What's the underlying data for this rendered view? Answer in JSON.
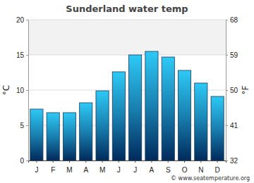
{
  "chart_data": {
    "type": "bar",
    "title": "Sunderland water temp",
    "categories": [
      "J",
      "F",
      "M",
      "A",
      "M",
      "J",
      "J",
      "A",
      "S",
      "O",
      "N",
      "D"
    ],
    "values": [
      7.3,
      6.8,
      6.8,
      8.2,
      9.9,
      12.6,
      15.0,
      15.5,
      14.7,
      12.8,
      11.0,
      9.1
    ],
    "color": "#2ec9f6",
    "ylabel": "°C",
    "y2label": "°F",
    "ylim": [
      0,
      20
    ],
    "yticks": [
      0,
      5,
      10,
      15,
      20
    ],
    "y2lim": [
      32,
      68
    ],
    "y2ticks": [
      32,
      41,
      50,
      59,
      68
    ],
    "grid": true,
    "annotation": "© www.seatemperature.org"
  }
}
